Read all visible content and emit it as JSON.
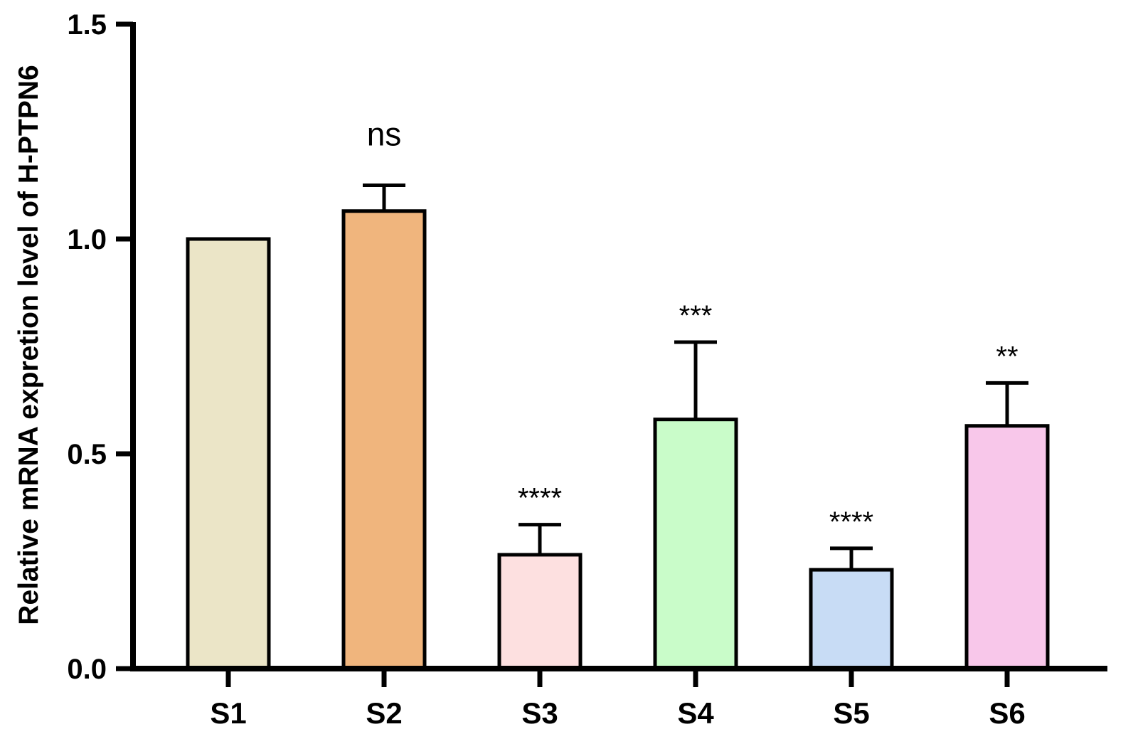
{
  "chart_data": {
    "type": "bar",
    "title": "",
    "xlabel": "",
    "ylabel": "Relative mRNA expretion level of H-PTPN6",
    "ylim": [
      0,
      1.5
    ],
    "yticks": [
      "0.0",
      "0.5",
      "1.0",
      "1.5"
    ],
    "categories": [
      "S1",
      "S2",
      "S3",
      "S4",
      "S5",
      "S6"
    ],
    "values": [
      1.0,
      1.065,
      0.265,
      0.58,
      0.23,
      0.565
    ],
    "errors": [
      0,
      0.06,
      0.07,
      0.18,
      0.05,
      0.1
    ],
    "annotations": [
      "",
      "ns",
      "****",
      "***",
      "****",
      "**"
    ],
    "colors": [
      "#ebe5c7",
      "#f0b57d",
      "#fde0e0",
      "#c9fcc9",
      "#c8dcf5",
      "#f8c7ea"
    ],
    "grid": false,
    "legend": "none"
  }
}
